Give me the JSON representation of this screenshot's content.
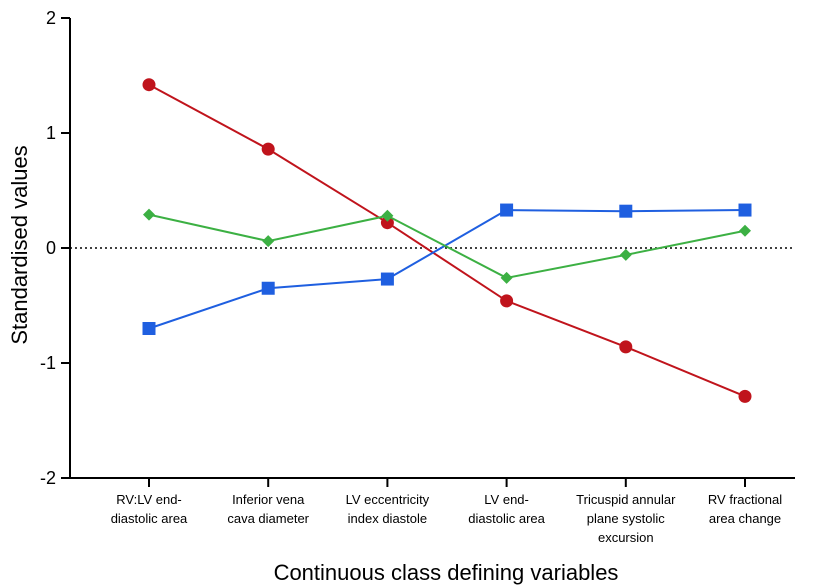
{
  "chart_data": {
    "type": "line",
    "title": "",
    "xlabel": "Continuous class defining variables",
    "ylabel": "Standardised values",
    "ylim": [
      -2,
      2
    ],
    "yticks": [
      2,
      1,
      0,
      -1,
      -2
    ],
    "ytick_labels": [
      "2",
      "1",
      "0",
      "-1",
      "-2"
    ],
    "reference_line": 0,
    "categories": [
      [
        "RV:LV end-",
        "diastolic area"
      ],
      [
        "Inferior vena",
        "cava diameter"
      ],
      [
        "LV eccentricity",
        "index diastole"
      ],
      [
        "LV end-",
        "diastolic area"
      ],
      [
        "Tricuspid annular",
        "plane systolic",
        "excursion"
      ],
      [
        "RV fractional",
        "area change"
      ]
    ],
    "legend": "none",
    "series": [
      {
        "color": "#c0141c",
        "marker": "circle",
        "values": [
          1.42,
          0.86,
          0.22,
          -0.46,
          -0.86,
          -1.29
        ]
      },
      {
        "color": "#1f5fe0",
        "marker": "square",
        "values": [
          -0.7,
          -0.35,
          -0.27,
          0.33,
          0.32,
          0.33
        ]
      },
      {
        "color": "#3cb043",
        "marker": "diamond",
        "values": [
          0.29,
          0.06,
          0.28,
          -0.26,
          -0.06,
          0.15
        ]
      }
    ]
  }
}
